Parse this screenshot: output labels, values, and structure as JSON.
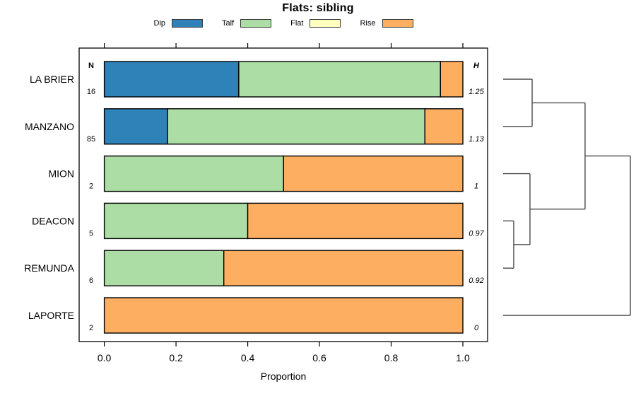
{
  "chart_data": {
    "type": "bar",
    "orientation": "horizontal",
    "stacked": true,
    "title": "Flats: sibling",
    "xlabel": "Proportion",
    "xlim": [
      0,
      1
    ],
    "x_ticks": [
      0.0,
      0.2,
      0.4,
      0.6,
      0.8,
      1.0
    ],
    "x_tick_labels": [
      "0.0",
      "0.2",
      "0.4",
      "0.6",
      "0.8",
      "1.0"
    ],
    "legend_position": "top",
    "grid": false,
    "n_header": "N",
    "h_header": "H",
    "legend": [
      {
        "label": "Dip",
        "color": "#2E82B8"
      },
      {
        "label": "Talf",
        "color": "#ABDDA4"
      },
      {
        "label": "Flat",
        "color": "#FFFFBF"
      },
      {
        "label": "Rise",
        "color": "#FDAE61"
      }
    ],
    "rows": [
      {
        "label": "LA BRIER",
        "n": 16,
        "h": "1.25",
        "values": [
          0.375,
          0.5625,
          0,
          0.0625
        ]
      },
      {
        "label": "MANZANO",
        "n": 85,
        "h": "1.13",
        "values": [
          0.1765,
          0.7176,
          0,
          0.1059
        ]
      },
      {
        "label": "MION",
        "n": 2,
        "h": "1",
        "values": [
          0,
          0.5,
          0,
          0.5
        ]
      },
      {
        "label": "DEACON",
        "n": 5,
        "h": "0.97",
        "values": [
          0,
          0.4,
          0,
          0.6
        ]
      },
      {
        "label": "REMUNDA",
        "n": 6,
        "h": "0.92",
        "values": [
          0,
          0.3333,
          0,
          0.6667
        ]
      },
      {
        "label": "LAPORTE",
        "n": 2,
        "h": "0",
        "values": [
          0,
          0,
          0,
          1
        ]
      }
    ],
    "dendrogram": {
      "h": 1.0,
      "children": [
        {
          "h": 0.644,
          "children": [
            {
              "h": 0.228,
              "children": [
                {
                  "leaf": "LA BRIER"
                },
                {
                  "leaf": "MANZANO"
                }
              ]
            },
            {
              "h": 0.211,
              "children": [
                {
                  "leaf": "MION"
                },
                {
                  "h": 0.083,
                  "children": [
                    {
                      "leaf": "DEACON"
                    },
                    {
                      "leaf": "REMUNDA"
                    }
                  ]
                }
              ]
            }
          ]
        },
        {
          "leaf": "LAPORTE"
        }
      ]
    },
    "colors": {
      "bar_border": "#000000",
      "axis": "#000000",
      "dendrogram_line": "#4a4a4a",
      "background": "#ffffff"
    }
  }
}
